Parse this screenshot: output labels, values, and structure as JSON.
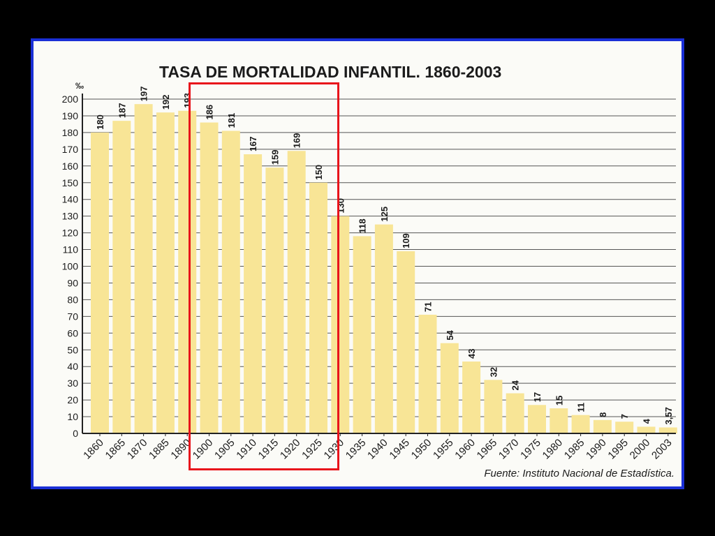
{
  "colors": {
    "background": "#000000",
    "frame_border": "#1a2fd6",
    "paper": "#fbfbf7",
    "bar_fill": "#f8e596",
    "gridline": "#555555",
    "highlight_box": "#e8141b",
    "text": "#1b1b1b"
  },
  "highlight": {
    "description_categories": [
      "1900",
      "1930"
    ]
  },
  "chart_data": {
    "type": "bar",
    "title": "TASA DE MORTALIDAD INFANTIL. 1860-2003",
    "ylabel": "‰",
    "xlabel": "",
    "ylim": [
      0,
      200
    ],
    "yticks": [
      0,
      10,
      20,
      30,
      40,
      50,
      60,
      70,
      80,
      90,
      100,
      110,
      120,
      130,
      140,
      150,
      160,
      170,
      180,
      190,
      200
    ],
    "grid": true,
    "categories": [
      "1860",
      "1865",
      "1870",
      "1885",
      "1890",
      "1900",
      "1905",
      "1910",
      "1915",
      "1920",
      "1925",
      "1930",
      "1935",
      "1940",
      "1945",
      "1950",
      "1955",
      "1960",
      "1965",
      "1970",
      "1975",
      "1980",
      "1985",
      "1990",
      "1995",
      "2000",
      "2003"
    ],
    "values": [
      180,
      187,
      197,
      192,
      193,
      186,
      181,
      167,
      159,
      169,
      150,
      130,
      118,
      125,
      109,
      71,
      54,
      43,
      32,
      24,
      17,
      15,
      11,
      8,
      7,
      4,
      3.57
    ],
    "value_labels": [
      "180",
      "187",
      "197",
      "192",
      "193",
      "186",
      "181",
      "167",
      "159",
      "169",
      "150",
      "130",
      "118",
      "125",
      "109",
      "71",
      "54",
      "43",
      "32",
      "24",
      "17",
      "15",
      "11",
      "8",
      "7",
      "4",
      "3,57"
    ],
    "source": "Fuente: Instituto Nacional de Estadística."
  }
}
